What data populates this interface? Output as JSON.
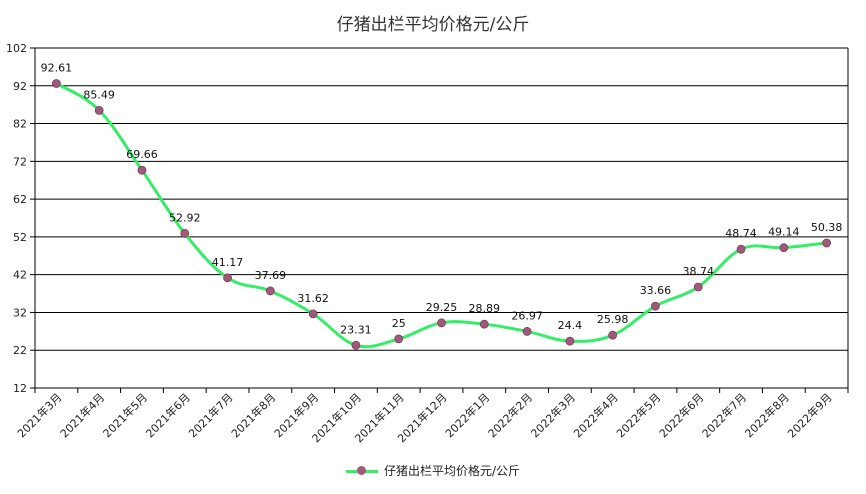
{
  "chart_data": {
    "type": "line",
    "title": "仔猪出栏平均价格元/公斤",
    "categories": [
      "2021年3月",
      "2021年4月",
      "2021年5月",
      "2021年6月",
      "2021年7月",
      "2021年8月",
      "2021年9月",
      "2021年10月",
      "2021年11月",
      "2021年12月",
      "2022年1月",
      "2022年2月",
      "2022年3月",
      "2022年4月",
      "2022年5月",
      "2022年6月",
      "2022年7月",
      "2022年8月",
      "2022年9月"
    ],
    "series": [
      {
        "name": "仔猪出栏平均价格元/公斤",
        "values": [
          92.61,
          85.49,
          69.66,
          52.92,
          41.17,
          37.69,
          31.62,
          23.31,
          25,
          29.25,
          28.89,
          26.97,
          24.4,
          25.98,
          33.66,
          38.74,
          48.74,
          49.14,
          50.38
        ],
        "labels": [
          "92.61",
          "85.49",
          "69.66",
          "52.92",
          "41.17",
          "37.69",
          "31.62",
          "23.31",
          "25",
          "29.25",
          "28.89",
          "26.97",
          "24.4",
          "25.98",
          "33.66",
          "38.74",
          "48.74",
          "49.14",
          "50.38"
        ]
      }
    ],
    "yticks": [
      "12",
      "22",
      "32",
      "42",
      "52",
      "62",
      "72",
      "82",
      "92",
      "102"
    ],
    "ylim": [
      12,
      102
    ],
    "grid": true,
    "legend_position": "bottom",
    "colors": {
      "line": "#33ee66",
      "marker": "#a0597a",
      "grid": "#000000"
    }
  }
}
